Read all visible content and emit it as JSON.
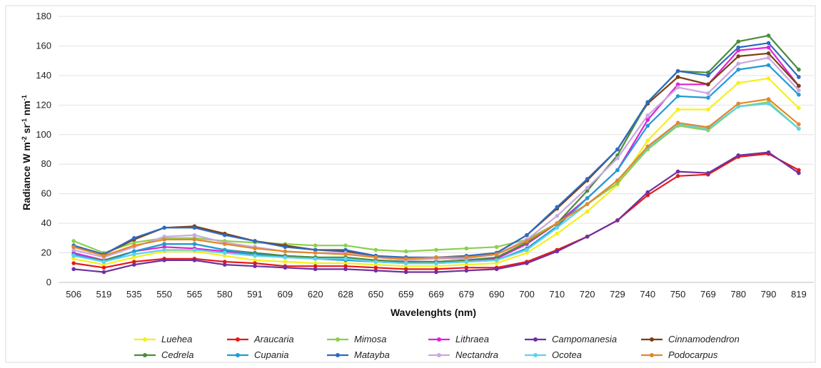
{
  "chart_data": {
    "type": "line",
    "ylabel_main": "Radiance W m",
    "ylabel_sup1": "-2",
    "ylabel_mid1": " sr",
    "ylabel_sup2": "-1",
    "ylabel_mid2": " nm",
    "ylabel_sup3": "-1",
    "xlabel": "Wavelenghts (nm)",
    "ylim": [
      0,
      180
    ],
    "yticks": [
      "0",
      "20",
      "40",
      "60",
      "80",
      "100",
      "120",
      "140",
      "160",
      "180"
    ],
    "grid": true,
    "legend_position": "bottom",
    "categories": [
      "506",
      "519",
      "535",
      "550",
      "565",
      "580",
      "591",
      "609",
      "620",
      "628",
      "650",
      "659",
      "669",
      "679",
      "690",
      "700",
      "710",
      "720",
      "729",
      "740",
      "750",
      "769",
      "780",
      "790",
      "819"
    ],
    "series": [
      {
        "name": "Luehea",
        "color": "#f5ef1f",
        "values": [
          16,
          12,
          17,
          21,
          21,
          18,
          15,
          14,
          13,
          13,
          12,
          11,
          11,
          12,
          13,
          20,
          33,
          48,
          66,
          96,
          117,
          117,
          135,
          138,
          118
        ]
      },
      {
        "name": "Araucaria",
        "color": "#e51a1a",
        "values": [
          13,
          10,
          14,
          16,
          16,
          14,
          13,
          11,
          11,
          11,
          10,
          9,
          9,
          10,
          10,
          14,
          22,
          31,
          42,
          59,
          72,
          73,
          85,
          87,
          76
        ]
      },
      {
        "name": "Mimosa",
        "color": "#8ccf4d",
        "values": [
          28,
          20,
          27,
          30,
          30,
          28,
          27,
          26,
          25,
          25,
          22,
          21,
          22,
          23,
          24,
          29,
          40,
          53,
          67,
          90,
          106,
          103,
          119,
          122,
          104
        ]
      },
      {
        "name": "Lithraea",
        "color": "#e022d6",
        "values": [
          20,
          15,
          21,
          24,
          23,
          21,
          19,
          18,
          17,
          16,
          15,
          14,
          14,
          15,
          16,
          26,
          40,
          57,
          76,
          110,
          134,
          134,
          157,
          159,
          133
        ]
      },
      {
        "name": "Campomanesia",
        "color": "#7030a0",
        "values": [
          9,
          7,
          12,
          15,
          15,
          12,
          11,
          10,
          9,
          9,
          8,
          7,
          7,
          8,
          9,
          13,
          21,
          31,
          42,
          61,
          75,
          74,
          86,
          88,
          74
        ]
      },
      {
        "name": "Cinnamodendron",
        "color": "#7b3f12",
        "values": [
          24,
          19,
          29,
          37,
          38,
          33,
          28,
          25,
          22,
          21,
          18,
          16,
          16,
          17,
          20,
          32,
          50,
          69,
          90,
          121,
          139,
          134,
          153,
          155,
          133
        ]
      },
      {
        "name": "Cedrela",
        "color": "#4a8c3b",
        "values": [
          18,
          15,
          21,
          26,
          26,
          22,
          20,
          18,
          17,
          17,
          15,
          14,
          14,
          15,
          17,
          27,
          40,
          62,
          86,
          122,
          143,
          142,
          163,
          167,
          144
        ]
      },
      {
        "name": "Cupania",
        "color": "#1f9bd6",
        "values": [
          19,
          14,
          21,
          26,
          26,
          22,
          19,
          17,
          16,
          15,
          14,
          13,
          13,
          14,
          15,
          23,
          38,
          57,
          76,
          106,
          126,
          125,
          144,
          147,
          127
        ]
      },
      {
        "name": "Matayba",
        "color": "#2e6bbf",
        "values": [
          25,
          19,
          30,
          37,
          37,
          32,
          28,
          24,
          22,
          22,
          18,
          17,
          17,
          18,
          20,
          32,
          51,
          70,
          90,
          122,
          143,
          140,
          159,
          162,
          139
        ]
      },
      {
        "name": "Nectandra",
        "color": "#c9a8e0",
        "values": [
          22,
          17,
          24,
          31,
          32,
          27,
          24,
          21,
          20,
          20,
          17,
          15,
          16,
          16,
          19,
          29,
          45,
          64,
          84,
          113,
          132,
          128,
          148,
          152,
          130
        ]
      },
      {
        "name": "Ocotea",
        "color": "#5fd3e8",
        "values": [
          18,
          14,
          19,
          22,
          22,
          20,
          18,
          17,
          16,
          16,
          14,
          13,
          13,
          14,
          15,
          22,
          37,
          53,
          69,
          91,
          107,
          104,
          119,
          121,
          104
        ]
      },
      {
        "name": "Podocarpus",
        "color": "#e2882b",
        "values": [
          24,
          18,
          25,
          29,
          29,
          26,
          23,
          21,
          20,
          19,
          17,
          16,
          17,
          17,
          19,
          28,
          40,
          53,
          69,
          92,
          108,
          105,
          121,
          124,
          107
        ]
      }
    ]
  }
}
